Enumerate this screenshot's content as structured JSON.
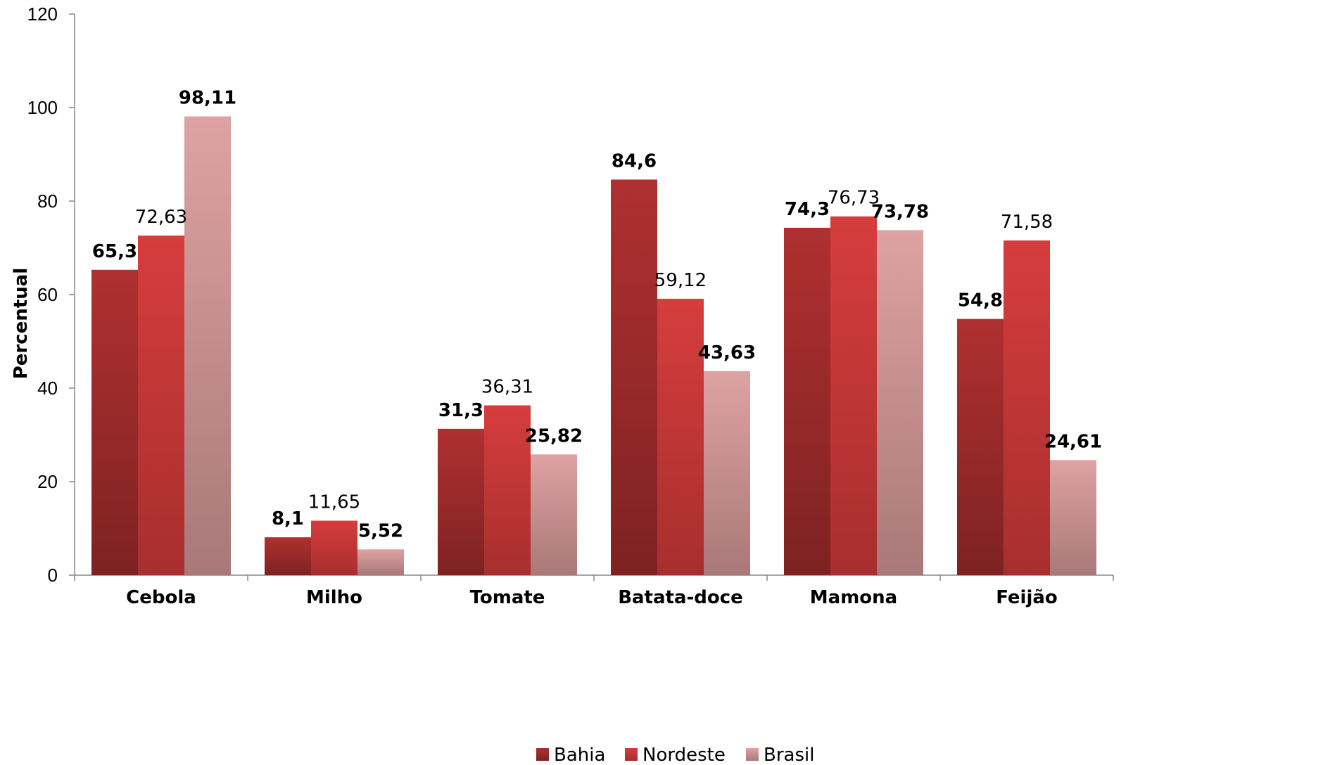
{
  "chart_data": {
    "type": "bar",
    "ylabel": "Percentual",
    "ylim": [
      0,
      120
    ],
    "yticks": [
      0,
      20,
      40,
      60,
      80,
      100,
      120
    ],
    "categories": [
      "Cebola",
      "Milho",
      "Tomate",
      "Batata-doce",
      "Mamona",
      "Feijão"
    ],
    "series": [
      {
        "name": "Bahia",
        "color": "#9e2a2a",
        "values": [
          65.3,
          8.1,
          31.3,
          84.6,
          74.3,
          54.8
        ],
        "labels": [
          "65,3",
          "8,1",
          "31,3",
          "84,6",
          "74,3",
          "54,8"
        ],
        "label_bold": [
          true,
          true,
          true,
          true,
          true,
          true
        ]
      },
      {
        "name": "Nordeste",
        "color": "#cc3a3a",
        "values": [
          72.63,
          11.65,
          36.31,
          59.12,
          76.73,
          71.58
        ],
        "labels": [
          "72,63",
          "11,65",
          "36,31",
          "59,12",
          "76,73",
          "71,58"
        ],
        "label_bold": [
          false,
          false,
          false,
          false,
          false,
          false
        ]
      },
      {
        "name": "Brasil",
        "color": "#d99a9a",
        "values": [
          98.11,
          5.52,
          25.82,
          43.63,
          73.78,
          24.61
        ],
        "labels": [
          "98,11",
          "5,52",
          "25,82",
          "43,63",
          "73,78",
          "24,61"
        ],
        "label_bold": [
          true,
          true,
          true,
          true,
          true,
          true
        ]
      }
    ],
    "legend_position": "bottom",
    "grid": false
  }
}
